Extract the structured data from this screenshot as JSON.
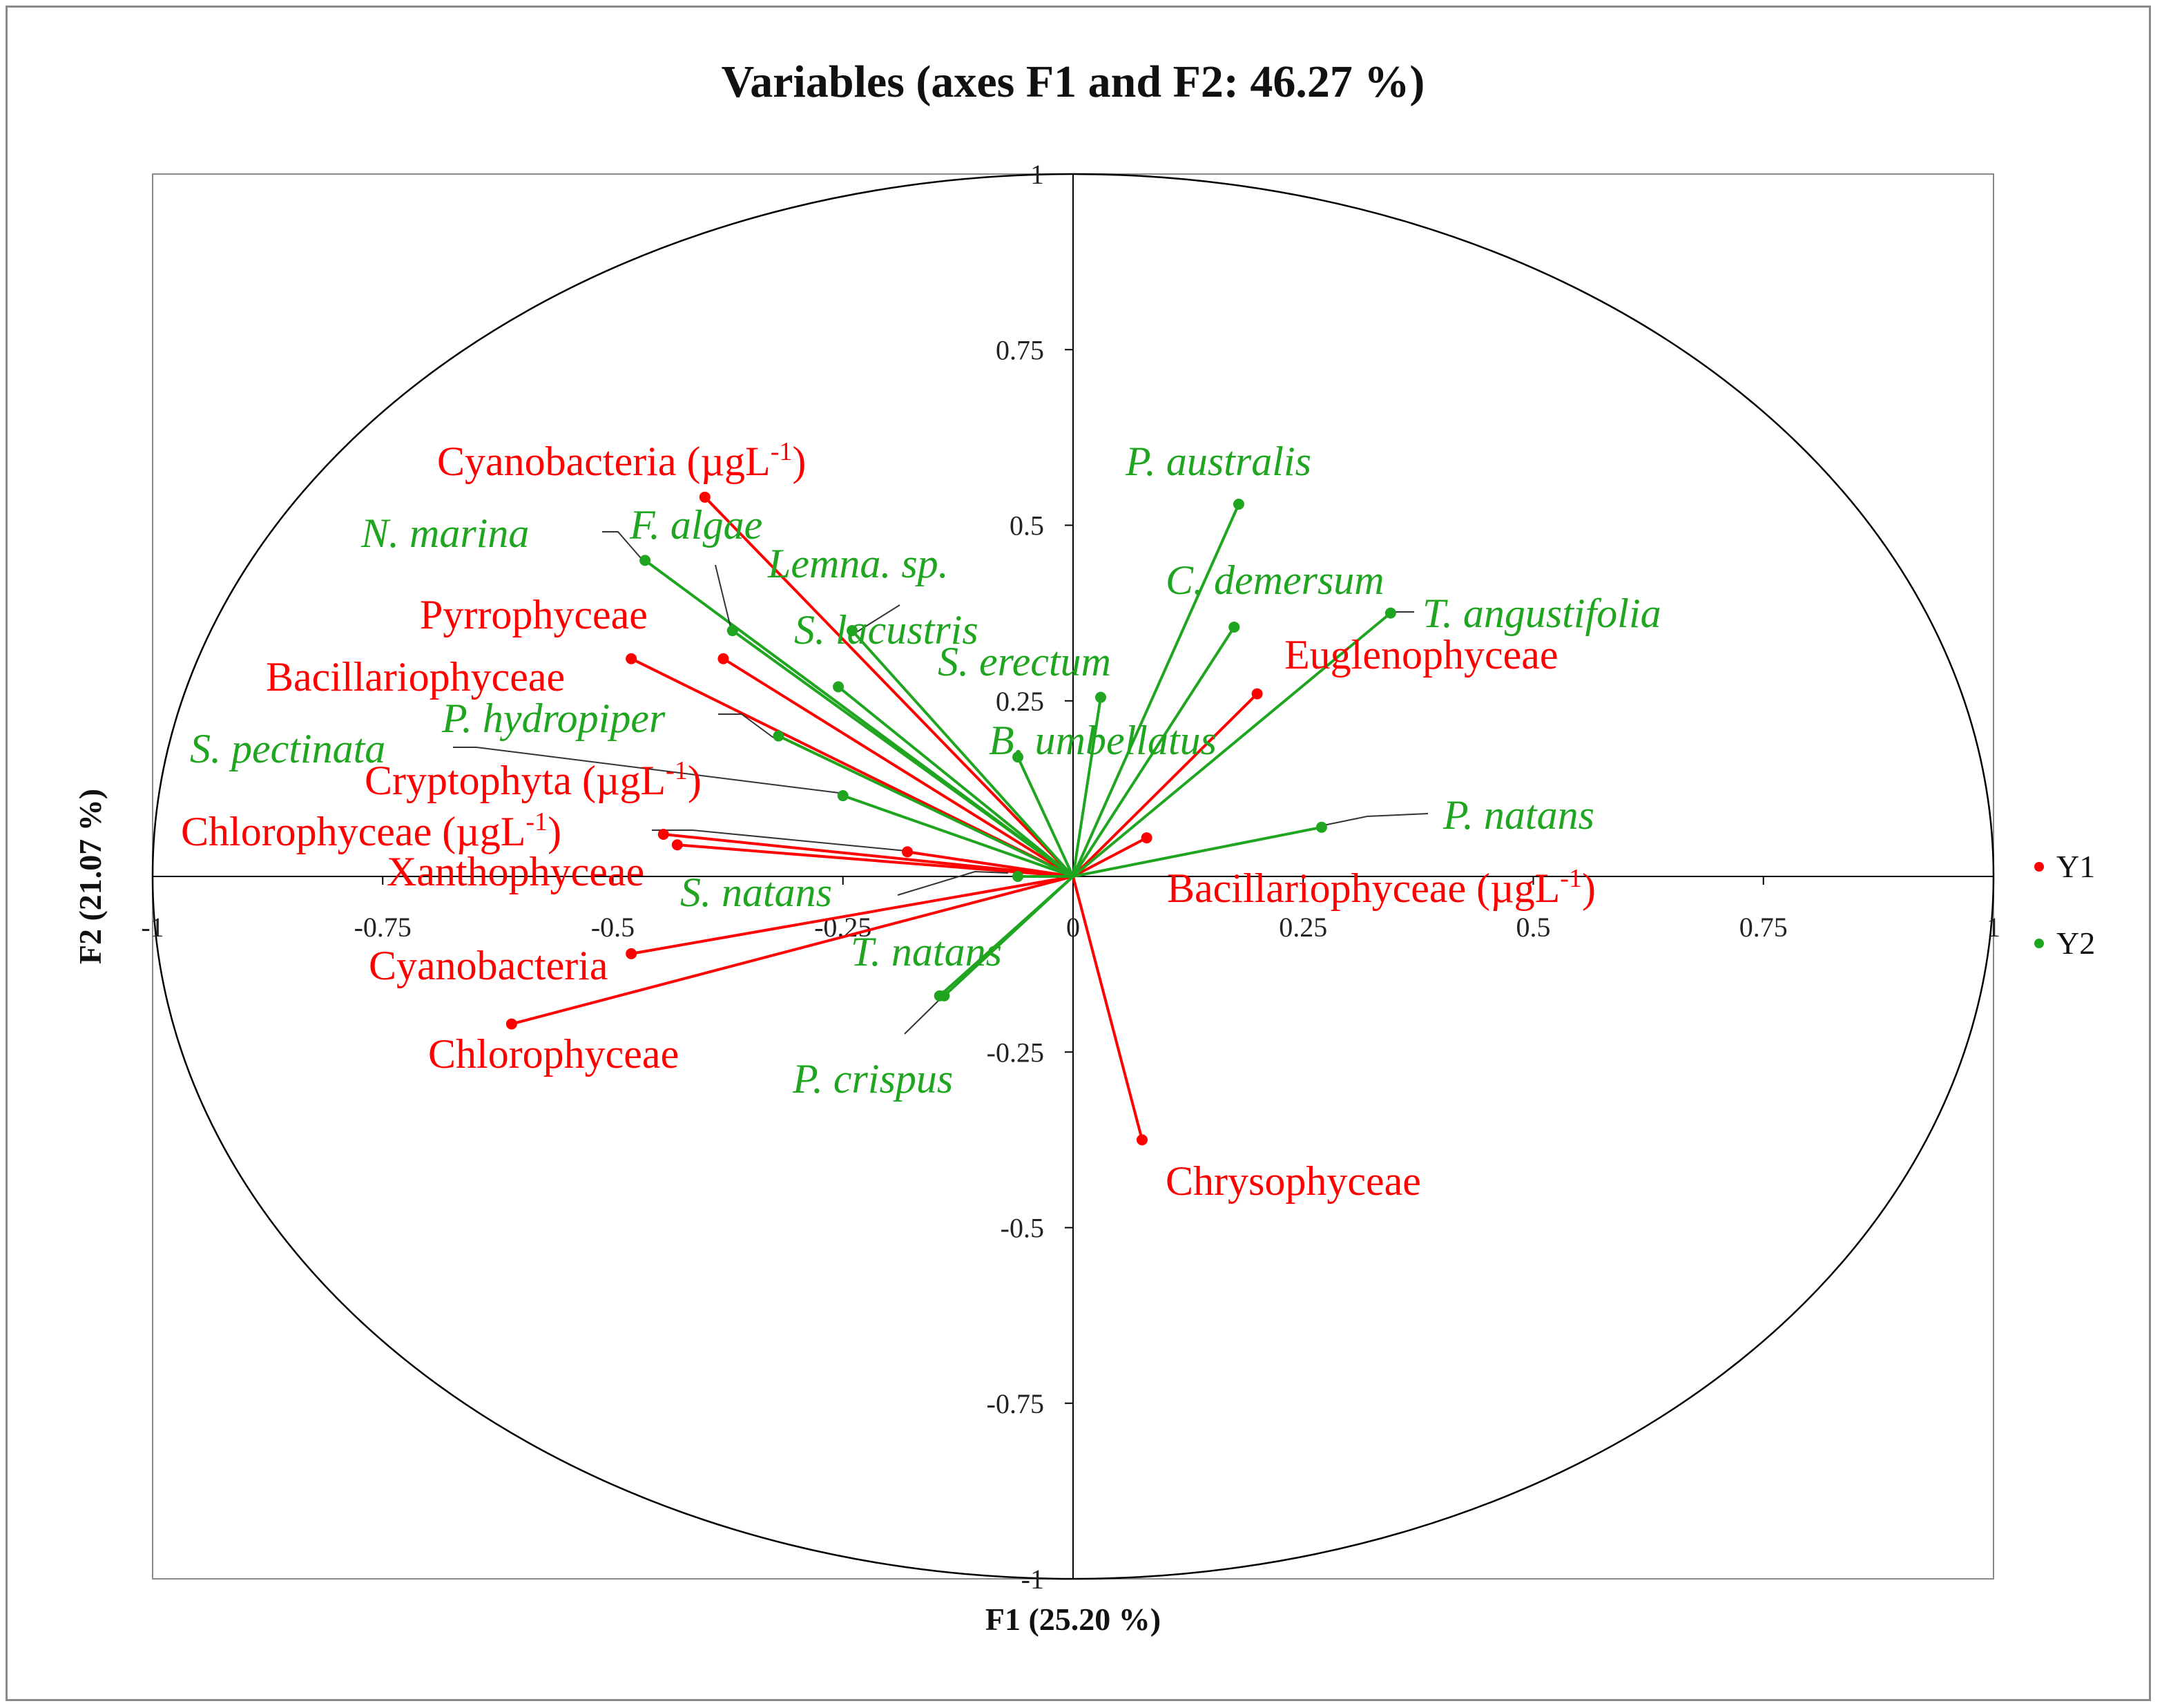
{
  "chart_data": {
    "type": "scatter",
    "title": "Variables (axes F1 and F2: 46.27 %)",
    "xlabel": "F1 (25.20 %)",
    "ylabel": "F2 (21.07 %)",
    "xlim": [
      -1,
      1
    ],
    "ylim": [
      -1,
      1
    ],
    "xticks": [
      "-1",
      "-0.75",
      "-0.5",
      "-0.25",
      "0",
      "0.25",
      "0.5",
      "0.75",
      "1"
    ],
    "yticks": [
      "1",
      "0.75",
      "0.5",
      "0.25",
      "0",
      "-0.25",
      "-0.5",
      "-0.75",
      "-1"
    ],
    "grid": false,
    "correlation_circle": true,
    "legend_position": "right",
    "colors": {
      "Y1": "#ff0000",
      "Y2": "#1fa51f"
    },
    "series": [
      {
        "name": "Y1",
        "points": [
          {
            "label": "Cyanobacteria (µgL-1)",
            "label_main": "Cyanobacteria (µgL",
            "label_sup": "-1",
            "label_tail": ")",
            "x": -0.4,
            "y": 0.54
          },
          {
            "label": "Pyrrophyceae",
            "label_main": "Pyrrophyceae",
            "x": -0.38,
            "y": 0.31
          },
          {
            "label": "Bacillariophyceae",
            "label_main": "Bacillariophyceae",
            "x": -0.48,
            "y": 0.31
          },
          {
            "label": "Cryptophyta (µgL-1)",
            "label_main": "Cryptophyta (µgL",
            "label_sup": "-1",
            "label_tail": ")",
            "x": -0.18,
            "y": 0.035
          },
          {
            "label": "Chlorophyceae (µgL-1)",
            "label_main": "Chlorophyceae (µgL",
            "label_sup": "-1",
            "label_tail": ")",
            "x": -0.445,
            "y": 0.06
          },
          {
            "label": "Xanthophyceae",
            "label_main": "Xanthophyceae",
            "x": -0.43,
            "y": 0.045
          },
          {
            "label": "Cyanobacteria",
            "label_main": "Cyanobacteria",
            "x": -0.48,
            "y": -0.11
          },
          {
            "label": "Chlorophyceae",
            "label_main": "Chlorophyceae",
            "x": -0.61,
            "y": -0.21
          },
          {
            "label": "Euglenophyceae",
            "label_main": "Euglenophyceae",
            "x": 0.2,
            "y": 0.26
          },
          {
            "label": "Bacillariophyceae (µgL-1)",
            "label_main": "Bacillariophyceae (µgL",
            "label_sup": "-1",
            "label_tail": ")",
            "x": 0.08,
            "y": 0.055
          },
          {
            "label": "Chrysophyceae",
            "label_main": "Chrysophyceae",
            "x": 0.075,
            "y": -0.375
          }
        ]
      },
      {
        "name": "Y2",
        "points": [
          {
            "label": "N. marina",
            "label_main": "N. marina",
            "x": -0.465,
            "y": 0.45
          },
          {
            "label": "F. algae",
            "label_main": "F. algae",
            "x": -0.37,
            "y": 0.35
          },
          {
            "label": "Lemna. sp.",
            "label_main": "Lemna. sp.",
            "x": -0.24,
            "y": 0.35
          },
          {
            "label": "S. lacustris",
            "label_main": "S. lacustris",
            "x": -0.255,
            "y": 0.27
          },
          {
            "label": "P. hydropiper",
            "label_main": "P. hydropiper",
            "x": -0.32,
            "y": 0.2
          },
          {
            "label": "S. pectinata",
            "label_main": "S. pectinata",
            "x": -0.25,
            "y": 0.115
          },
          {
            "label": "S. natans",
            "label_main": "S. natans",
            "x": -0.06,
            "y": 0.0
          },
          {
            "label": "T. natans",
            "label_main": "T. natans",
            "x": -0.145,
            "y": -0.17
          },
          {
            "label": "P. crispus",
            "label_main": "P. crispus",
            "x": -0.14,
            "y": -0.17
          },
          {
            "label": "P. australis",
            "label_main": "P. australis",
            "x": 0.18,
            "y": 0.53
          },
          {
            "label": "C. demersum",
            "label_main": "C. demersum",
            "x": 0.175,
            "y": 0.355
          },
          {
            "label": "T. angustifolia",
            "label_main": "T. angustifolia",
            "x": 0.345,
            "y": 0.375
          },
          {
            "label": "S. erectum",
            "label_main": "S. erectum",
            "x": 0.03,
            "y": 0.255
          },
          {
            "label": "B. umbellatus",
            "label_main": "B. umbellatus",
            "x": -0.06,
            "y": 0.17
          },
          {
            "label": "P. natans",
            "label_main": "P. natans",
            "x": 0.27,
            "y": 0.07
          }
        ]
      }
    ]
  }
}
